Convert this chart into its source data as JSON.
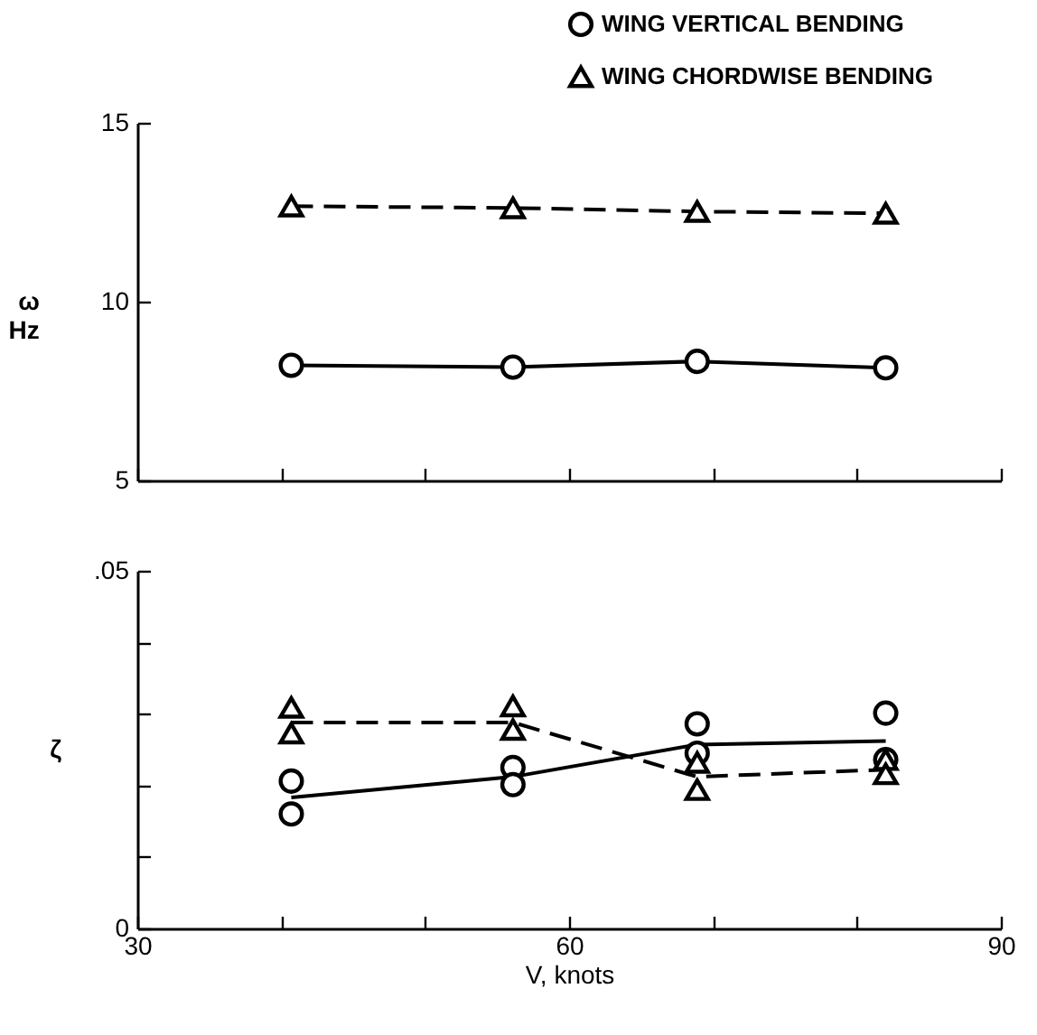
{
  "chart_data": [
    {
      "type": "line",
      "ylabel": "ω\nHz",
      "xlim": [
        30,
        90
      ],
      "xticks": [
        30,
        {
          "value": 40,
          "label": null
        },
        {
          "value": 50,
          "label": null
        },
        60,
        {
          "value": 70,
          "label": null
        },
        {
          "value": 80,
          "label": null
        },
        90
      ],
      "ylim": [
        5,
        15
      ],
      "yticks": [
        5,
        10,
        15
      ],
      "tick_labels": "y",
      "grid": false,
      "legend": "top right",
      "x": [
        40.7,
        56.1,
        68.9,
        82.0
      ],
      "series": [
        {
          "name": "WING VERTICAL BENDING",
          "color": "#000000",
          "marker": "circle",
          "line_style": "solid",
          "values": [
            8.22,
            8.17,
            8.33,
            8.15
          ]
        },
        {
          "name": "WING CHORDWISE BENDING",
          "color": "#000000",
          "marker": "triangle",
          "line_style": "dashed",
          "values": [
            12.67,
            12.62,
            12.52,
            12.47
          ]
        }
      ]
    },
    {
      "type": "scatter",
      "xlabel": "V, knots",
      "ylabel": "ζ",
      "xlim": [
        30,
        90
      ],
      "xticks": [
        30,
        {
          "value": 40,
          "label": null
        },
        {
          "value": 50,
          "label": null
        },
        60,
        {
          "value": 70,
          "label": null
        },
        {
          "value": 80,
          "label": null
        },
        90
      ],
      "ylim": [
        0,
        0.05
      ],
      "yticks": [
        0,
        {
          "value": 0.01,
          "label": null
        },
        {
          "value": 0.02,
          "label": null
        },
        {
          "value": 0.03,
          "label": null
        },
        {
          "value": 0.04,
          "label": null
        },
        {
          "value": 0.05,
          "label": ".05"
        }
      ],
      "grid": false,
      "series": [
        {
          "color": "#000000",
          "marker": "circle",
          "x": [
            40.7,
            40.7,
            56.1,
            56.1,
            68.9,
            68.9,
            82.0,
            82.0
          ],
          "values": [
            0.0206,
            0.016,
            0.0225,
            0.0201,
            0.0286,
            0.0245,
            0.0301,
            0.0236
          ]
        },
        {
          "color": "#000000",
          "marker": "triangle",
          "x": [
            40.7,
            40.7,
            56.1,
            56.1,
            68.9,
            68.9,
            82.0,
            82.0
          ],
          "values": [
            0.0309,
            0.0273,
            0.0311,
            0.0278,
            0.0232,
            0.0194,
            0.0236,
            0.0216
          ]
        },
        {
          "type": "line",
          "color": "#000000",
          "line_style": "solid",
          "x": [
            40.7,
            56.1,
            68.9,
            82.0
          ],
          "values": [
            0.0183,
            0.0212,
            0.0257,
            0.0262
          ]
        },
        {
          "type": "line",
          "color": "#000000",
          "line_style": "dashed",
          "x": [
            40.7,
            56.1,
            68.9,
            82.0
          ],
          "values": [
            0.0288,
            0.0288,
            0.0212,
            0.0222
          ]
        }
      ]
    }
  ]
}
